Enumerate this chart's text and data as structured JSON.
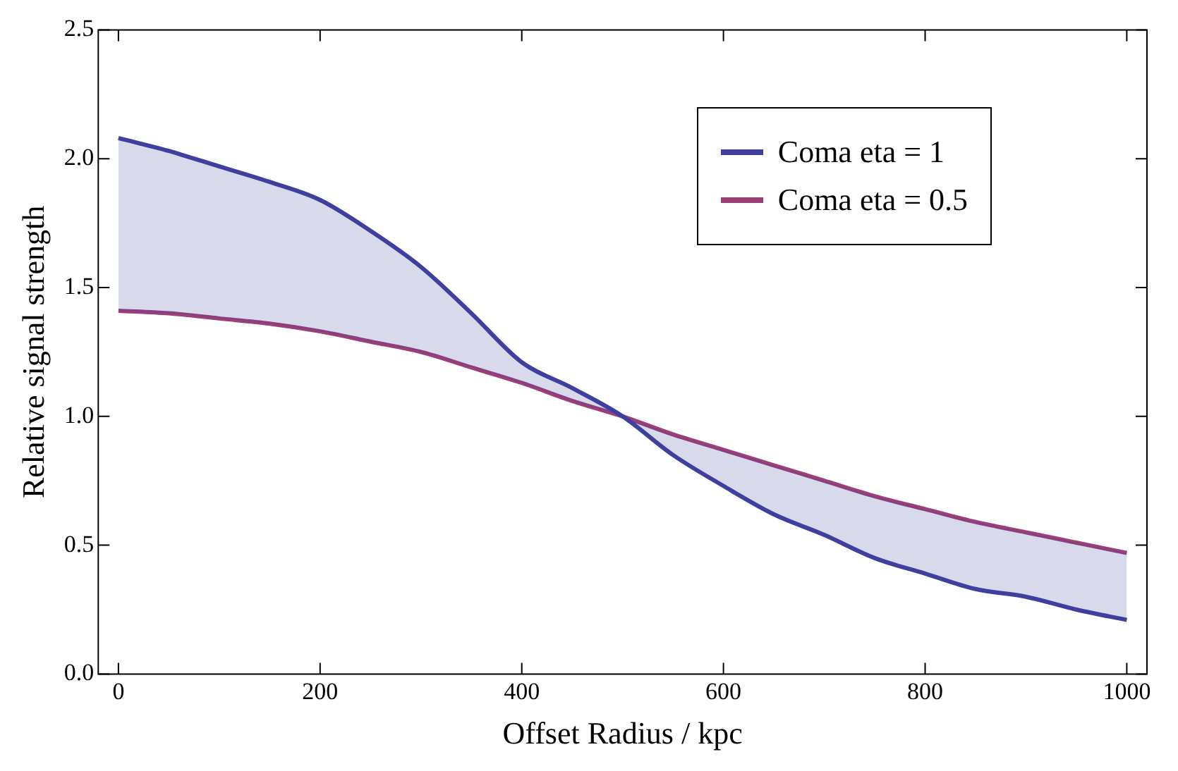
{
  "chart_data": {
    "type": "line",
    "xlabel": "Offset Radius / kpc",
    "ylabel": "Relative signal strength",
    "x": [
      0,
      50,
      100,
      150,
      200,
      250,
      300,
      350,
      400,
      450,
      500,
      550,
      600,
      650,
      700,
      750,
      800,
      850,
      900,
      950,
      1000
    ],
    "series": [
      {
        "name": "Coma eta = 1",
        "color": "#3f3f9f",
        "values": [
          2.08,
          2.03,
          1.97,
          1.91,
          1.84,
          1.72,
          1.58,
          1.4,
          1.21,
          1.11,
          1.0,
          0.85,
          0.73,
          0.62,
          0.54,
          0.45,
          0.39,
          0.33,
          0.3,
          0.25,
          0.21
        ]
      },
      {
        "name": "Coma eta = 0.5",
        "color": "#9c3f78",
        "values": [
          1.41,
          1.4,
          1.38,
          1.36,
          1.33,
          1.29,
          1.25,
          1.19,
          1.13,
          1.06,
          1.0,
          0.93,
          0.87,
          0.81,
          0.75,
          0.69,
          0.64,
          0.59,
          0.55,
          0.51,
          0.47
        ]
      }
    ],
    "xlim": [
      -20,
      1020
    ],
    "xticks": [
      0,
      200,
      400,
      600,
      800,
      1000
    ],
    "ylim": [
      0,
      2.5
    ],
    "yticks": [
      {
        "value": 0,
        "label": "0.0"
      },
      {
        "value": 0.5,
        "label": "0.5"
      },
      {
        "value": 1,
        "label": "1.0"
      },
      {
        "value": 1.5,
        "label": "1.5"
      },
      {
        "value": 2,
        "label": "2.0"
      },
      {
        "value": 2.5,
        "label": "2.5"
      }
    ],
    "grid": false,
    "legend": "top right",
    "marker": "none",
    "line_style": "solid"
  }
}
